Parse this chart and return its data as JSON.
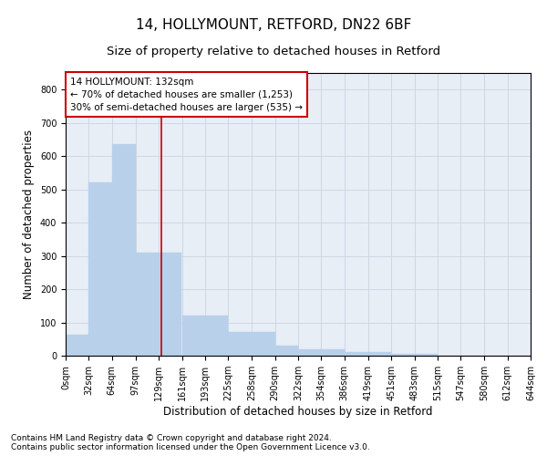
{
  "title_line1": "14, HOLLYMOUNT, RETFORD, DN22 6BF",
  "title_line2": "Size of property relative to detached houses in Retford",
  "xlabel": "Distribution of detached houses by size in Retford",
  "ylabel": "Number of detached properties",
  "bar_edges": [
    0,
    32,
    64,
    97,
    129,
    161,
    193,
    225,
    258,
    290,
    322,
    354,
    386,
    419,
    451,
    483,
    515,
    547,
    580,
    612,
    644
  ],
  "bar_heights": [
    62,
    520,
    635,
    310,
    310,
    120,
    120,
    70,
    70,
    30,
    20,
    20,
    10,
    10,
    5,
    5,
    0,
    0,
    0,
    0
  ],
  "bar_color": "#b8d0ea",
  "bar_edgecolor": "#b8d0ea",
  "grid_color": "#c8d4e4",
  "background_color": "#e8eef6",
  "property_line_x": 132,
  "property_line_color": "#cc0000",
  "annotation_text": "14 HOLLYMOUNT: 132sqm\n← 70% of detached houses are smaller (1,253)\n30% of semi-detached houses are larger (535) →",
  "annotation_box_color": "white",
  "annotation_box_edgecolor": "#cc0000",
  "ylim": [
    0,
    850
  ],
  "yticks": [
    0,
    100,
    200,
    300,
    400,
    500,
    600,
    700,
    800
  ],
  "tick_labels": [
    "0sqm",
    "32sqm",
    "64sqm",
    "97sqm",
    "129sqm",
    "161sqm",
    "193sqm",
    "225sqm",
    "258sqm",
    "290sqm",
    "322sqm",
    "354sqm",
    "386sqm",
    "419sqm",
    "451sqm",
    "483sqm",
    "515sqm",
    "547sqm",
    "580sqm",
    "612sqm",
    "644sqm"
  ],
  "footer_text": "Contains HM Land Registry data © Crown copyright and database right 2024.\nContains public sector information licensed under the Open Government Licence v3.0.",
  "title_fontsize": 11,
  "subtitle_fontsize": 9.5,
  "axis_label_fontsize": 8.5,
  "tick_fontsize": 7,
  "footer_fontsize": 6.5,
  "annotation_fontsize": 7.5
}
